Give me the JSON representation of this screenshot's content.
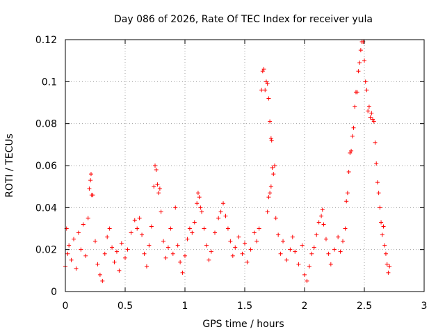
{
  "chart_data": {
    "type": "scatter",
    "title": "Day 086 of 2026, Rate Of TEC Index for receiver yula",
    "xlabel": "GPS time / hours",
    "ylabel": "ROTI / TECUs",
    "xlim": [
      0,
      3
    ],
    "ylim": [
      0,
      0.12
    ],
    "xticks": [
      0,
      0.5,
      1,
      1.5,
      2,
      2.5,
      3
    ],
    "xtick_labels": [
      "0",
      "0.5",
      "1",
      "1.5",
      "2",
      "2.5",
      "3"
    ],
    "yticks": [
      0,
      0.02,
      0.04,
      0.06,
      0.08,
      0.1,
      0.12
    ],
    "ytick_labels": [
      "0",
      "0.02",
      "0.04",
      "0.06",
      "0.08",
      "0.1",
      "0.12"
    ],
    "grid": true,
    "marker": "plus",
    "colors": {
      "series": "#ff0000",
      "grid": "#a0a0a0",
      "axis": "#000000"
    },
    "series": [
      {
        "name": "ROTI",
        "points": [
          [
            0.0,
            0.012
          ],
          [
            0.01,
            0.03
          ],
          [
            0.02,
            0.018
          ],
          [
            0.03,
            0.022
          ],
          [
            0.05,
            0.015
          ],
          [
            0.07,
            0.025
          ],
          [
            0.09,
            0.011
          ],
          [
            0.11,
            0.028
          ],
          [
            0.13,
            0.02
          ],
          [
            0.15,
            0.032
          ],
          [
            0.17,
            0.017
          ],
          [
            0.19,
            0.035
          ],
          [
            0.2,
            0.049
          ],
          [
            0.21,
            0.053
          ],
          [
            0.215,
            0.056
          ],
          [
            0.22,
            0.046
          ],
          [
            0.23,
            0.046
          ],
          [
            0.25,
            0.024
          ],
          [
            0.27,
            0.013
          ],
          [
            0.29,
            0.008
          ],
          [
            0.31,
            0.005
          ],
          [
            0.33,
            0.018
          ],
          [
            0.35,
            0.026
          ],
          [
            0.37,
            0.03
          ],
          [
            0.39,
            0.021
          ],
          [
            0.41,
            0.014
          ],
          [
            0.43,
            0.019
          ],
          [
            0.45,
            0.01
          ],
          [
            0.47,
            0.023
          ],
          [
            0.5,
            0.016
          ],
          [
            0.52,
            0.02
          ],
          [
            0.55,
            0.028
          ],
          [
            0.58,
            0.034
          ],
          [
            0.6,
            0.03
          ],
          [
            0.62,
            0.035
          ],
          [
            0.64,
            0.027
          ],
          [
            0.66,
            0.018
          ],
          [
            0.68,
            0.012
          ],
          [
            0.7,
            0.022
          ],
          [
            0.72,
            0.031
          ],
          [
            0.74,
            0.05
          ],
          [
            0.75,
            0.06
          ],
          [
            0.76,
            0.058
          ],
          [
            0.77,
            0.051
          ],
          [
            0.78,
            0.047
          ],
          [
            0.79,
            0.049
          ],
          [
            0.8,
            0.038
          ],
          [
            0.82,
            0.024
          ],
          [
            0.84,
            0.016
          ],
          [
            0.86,
            0.021
          ],
          [
            0.88,
            0.03
          ],
          [
            0.9,
            0.018
          ],
          [
            0.92,
            0.04
          ],
          [
            0.94,
            0.022
          ],
          [
            0.96,
            0.014
          ],
          [
            0.98,
            0.009
          ],
          [
            1.0,
            0.017
          ],
          [
            1.02,
            0.025
          ],
          [
            1.04,
            0.03
          ],
          [
            1.06,
            0.028
          ],
          [
            1.08,
            0.033
          ],
          [
            1.1,
            0.042
          ],
          [
            1.11,
            0.047
          ],
          [
            1.12,
            0.045
          ],
          [
            1.13,
            0.04
          ],
          [
            1.14,
            0.038
          ],
          [
            1.16,
            0.03
          ],
          [
            1.18,
            0.022
          ],
          [
            1.2,
            0.015
          ],
          [
            1.22,
            0.019
          ],
          [
            1.25,
            0.028
          ],
          [
            1.28,
            0.035
          ],
          [
            1.3,
            0.038
          ],
          [
            1.32,
            0.042
          ],
          [
            1.34,
            0.036
          ],
          [
            1.36,
            0.03
          ],
          [
            1.38,
            0.024
          ],
          [
            1.4,
            0.017
          ],
          [
            1.42,
            0.021
          ],
          [
            1.45,
            0.026
          ],
          [
            1.48,
            0.018
          ],
          [
            1.5,
            0.023
          ],
          [
            1.52,
            0.014
          ],
          [
            1.55,
            0.02
          ],
          [
            1.58,
            0.028
          ],
          [
            1.6,
            0.024
          ],
          [
            1.62,
            0.03
          ],
          [
            1.64,
            0.096
          ],
          [
            1.65,
            0.105
          ],
          [
            1.66,
            0.106
          ],
          [
            1.67,
            0.096
          ],
          [
            1.68,
            0.1
          ],
          [
            1.69,
            0.099
          ],
          [
            1.7,
            0.092
          ],
          [
            1.71,
            0.081
          ],
          [
            1.72,
            0.073
          ],
          [
            1.725,
            0.072
          ],
          [
            1.73,
            0.059
          ],
          [
            1.74,
            0.056
          ],
          [
            1.75,
            0.06
          ],
          [
            1.72,
            0.05
          ],
          [
            1.71,
            0.047
          ],
          [
            1.7,
            0.045
          ],
          [
            1.69,
            0.038
          ],
          [
            1.76,
            0.035
          ],
          [
            1.78,
            0.027
          ],
          [
            1.8,
            0.018
          ],
          [
            1.82,
            0.024
          ],
          [
            1.85,
            0.015
          ],
          [
            1.88,
            0.02
          ],
          [
            1.9,
            0.026
          ],
          [
            1.92,
            0.019
          ],
          [
            1.95,
            0.013
          ],
          [
            1.98,
            0.022
          ],
          [
            2.0,
            0.008
          ],
          [
            2.02,
            0.005
          ],
          [
            2.04,
            0.012
          ],
          [
            2.06,
            0.018
          ],
          [
            2.08,
            0.021
          ],
          [
            2.1,
            0.027
          ],
          [
            2.12,
            0.033
          ],
          [
            2.14,
            0.036
          ],
          [
            2.15,
            0.039
          ],
          [
            2.16,
            0.032
          ],
          [
            2.18,
            0.025
          ],
          [
            2.2,
            0.018
          ],
          [
            2.22,
            0.013
          ],
          [
            2.25,
            0.02
          ],
          [
            2.28,
            0.026
          ],
          [
            2.3,
            0.019
          ],
          [
            2.32,
            0.024
          ],
          [
            2.34,
            0.03
          ],
          [
            2.35,
            0.043
          ],
          [
            2.36,
            0.047
          ],
          [
            2.37,
            0.057
          ],
          [
            2.38,
            0.066
          ],
          [
            2.39,
            0.067
          ],
          [
            2.4,
            0.074
          ],
          [
            2.41,
            0.078
          ],
          [
            2.42,
            0.088
          ],
          [
            2.43,
            0.095
          ],
          [
            2.44,
            0.095
          ],
          [
            2.45,
            0.105
          ],
          [
            2.46,
            0.109
          ],
          [
            2.47,
            0.115
          ],
          [
            2.48,
            0.119
          ],
          [
            2.49,
            0.119
          ],
          [
            2.5,
            0.11
          ],
          [
            2.51,
            0.1
          ],
          [
            2.52,
            0.096
          ],
          [
            2.53,
            0.086
          ],
          [
            2.54,
            0.088
          ],
          [
            2.55,
            0.083
          ],
          [
            2.56,
            0.085
          ],
          [
            2.57,
            0.082
          ],
          [
            2.58,
            0.081
          ],
          [
            2.59,
            0.071
          ],
          [
            2.6,
            0.061
          ],
          [
            2.61,
            0.052
          ],
          [
            2.62,
            0.047
          ],
          [
            2.63,
            0.04
          ],
          [
            2.64,
            0.033
          ],
          [
            2.65,
            0.027
          ],
          [
            2.66,
            0.031
          ],
          [
            2.67,
            0.022
          ],
          [
            2.68,
            0.018
          ],
          [
            2.69,
            0.013
          ],
          [
            2.7,
            0.009
          ],
          [
            2.71,
            0.012
          ]
        ]
      }
    ]
  }
}
